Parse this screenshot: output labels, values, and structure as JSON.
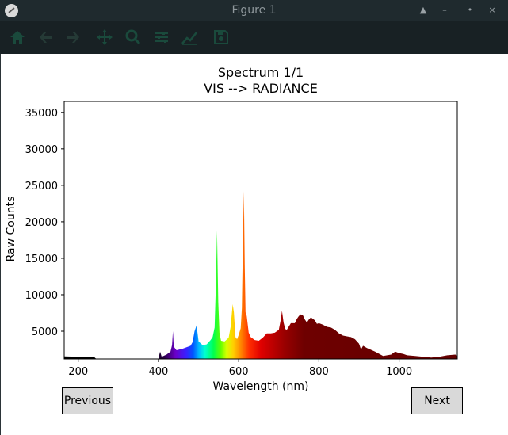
{
  "window": {
    "title": "Figure 1"
  },
  "toolbar": {
    "icons": [
      "home-icon",
      "back-arrow-icon",
      "forward-arrow-icon",
      "pan-icon",
      "zoom-icon",
      "configure-subplots-icon",
      "edit-axis-icon",
      "save-icon"
    ]
  },
  "buttons": {
    "previous": "Previous",
    "next": "Next"
  },
  "colors": {
    "titlebar": "#1f2a2e",
    "toolbar": "#182124",
    "toolbar_icon": "#1a4a3c",
    "button_bg": "#d9d9d9"
  },
  "chart_data": {
    "type": "area",
    "title": "Spectrum 1/1",
    "subtitle": "VIS --> RADIANCE",
    "xlabel": "Wavelength (nm)",
    "ylabel": "Raw Counts",
    "xlim": [
      165,
      1145
    ],
    "ylim": [
      1200,
      36500
    ],
    "xticks": [
      200,
      400,
      600,
      800,
      1000
    ],
    "yticks": [
      5000,
      10000,
      15000,
      20000,
      25000,
      30000,
      35000
    ],
    "grid": false,
    "fill": "wavelength-colored",
    "x": [
      165,
      200,
      240,
      245,
      300,
      350,
      400,
      404,
      408,
      420,
      430,
      434,
      436,
      438,
      445,
      460,
      470,
      480,
      485,
      490,
      495,
      500,
      510,
      520,
      530,
      535,
      540,
      543,
      546,
      549,
      552,
      556,
      565,
      575,
      580,
      585,
      588,
      592,
      596,
      600,
      605,
      608,
      611,
      613,
      615,
      617,
      620,
      625,
      630,
      640,
      650,
      660,
      670,
      680,
      690,
      700,
      705,
      708,
      712,
      716,
      720,
      730,
      740,
      745,
      750,
      755,
      760,
      765,
      770,
      775,
      780,
      785,
      790,
      795,
      800,
      810,
      820,
      830,
      840,
      850,
      860,
      870,
      880,
      890,
      900,
      905,
      910,
      920,
      940,
      960,
      980,
      990,
      1000,
      1010,
      1020,
      1040,
      1060,
      1080,
      1100,
      1120,
      1140,
      1145
    ],
    "y": [
      1550,
      1500,
      1450,
      1200,
      1200,
      1200,
      1250,
      2200,
      1500,
      1800,
      2200,
      3100,
      5000,
      2900,
      2400,
      2600,
      2800,
      3000,
      3500,
      5000,
      5800,
      3600,
      3100,
      3200,
      3800,
      4200,
      5500,
      11000,
      18800,
      9000,
      4800,
      3700,
      3600,
      4100,
      5600,
      8700,
      7600,
      4200,
      3900,
      4500,
      5400,
      8200,
      18500,
      24200,
      14000,
      7600,
      7100,
      4800,
      4200,
      3800,
      3700,
      4100,
      4700,
      4700,
      4800,
      5200,
      6600,
      7800,
      6200,
      5300,
      5200,
      6100,
      6100,
      6700,
      7100,
      7300,
      7200,
      6600,
      6200,
      6600,
      6900,
      6700,
      6500,
      6000,
      6100,
      5900,
      5600,
      5500,
      5200,
      4700,
      4400,
      4300,
      4200,
      3900,
      3300,
      2500,
      3000,
      2700,
      2200,
      1600,
      1800,
      2200,
      2000,
      1900,
      1700,
      1600,
      1500,
      1400,
      1500,
      1700,
      1800,
      1650
    ]
  }
}
